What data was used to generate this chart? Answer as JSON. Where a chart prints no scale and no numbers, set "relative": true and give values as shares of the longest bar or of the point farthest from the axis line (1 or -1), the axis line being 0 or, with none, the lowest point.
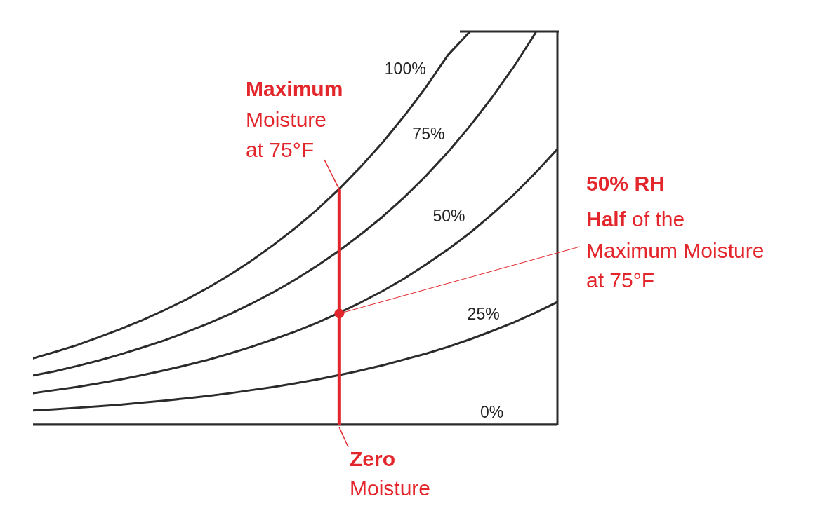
{
  "chart_data": {
    "type": "line",
    "relative": true,
    "tick_labels": false,
    "categories": [
      null,
      null,
      null,
      null,
      null,
      null,
      null,
      null,
      null,
      null,
      null,
      null,
      null,
      null,
      null,
      null,
      null,
      null,
      null,
      null,
      null,
      null,
      null,
      null,
      null
    ],
    "series": [
      {
        "name": "100%",
        "color": "#2b2b2b",
        "values": [
          0.169,
          0.185,
          0.202,
          0.222,
          0.243,
          0.266,
          0.291,
          0.318,
          0.348,
          0.381,
          0.417,
          0.457,
          0.5,
          0.547,
          0.599,
          0.656,
          0.718,
          0.786,
          0.86,
          0.941,
          1,
          null,
          null,
          null,
          null
        ]
      },
      {
        "name": "75%",
        "color": "#2b2b2b",
        "values": [
          0.125,
          0.136,
          0.149,
          0.163,
          0.179,
          0.196,
          0.214,
          0.235,
          0.257,
          0.281,
          0.308,
          0.337,
          0.369,
          0.404,
          0.442,
          0.484,
          0.529,
          0.579,
          0.634,
          0.694,
          0.76,
          0.832,
          0.91,
          0.997,
          null
        ]
      },
      {
        "name": "50%",
        "color": "#2b2b2b",
        "values": [
          0.08,
          0.088,
          0.096,
          0.105,
          0.115,
          0.126,
          0.138,
          0.151,
          0.165,
          0.181,
          0.198,
          0.217,
          0.237,
          0.259,
          0.284,
          0.311,
          0.34,
          0.372,
          0.408,
          0.446,
          0.488,
          0.535,
          0.585,
          0.641,
          0.701
        ]
      },
      {
        "name": "25%",
        "color": "#2b2b2b",
        "values": [
          0.036,
          0.039,
          0.043,
          0.047,
          0.051,
          0.056,
          0.061,
          0.067,
          0.073,
          0.08,
          0.088,
          0.096,
          0.105,
          0.115,
          0.126,
          0.138,
          0.151,
          0.166,
          0.181,
          0.198,
          0.217,
          0.238,
          0.26,
          0.285,
          0.312
        ]
      },
      {
        "name": "0%",
        "color": "#2b2b2b",
        "values": [
          0,
          0,
          0,
          0,
          0,
          0,
          0,
          0,
          0,
          0,
          0,
          0,
          0,
          0,
          0,
          0,
          0,
          0,
          0,
          0,
          0,
          0,
          0,
          0,
          0
        ]
      }
    ],
    "annotations": [
      "Maximum",
      "Moisture",
      "at 75°F",
      "Zero",
      "Moisture",
      "50% RH",
      "Half",
      "of the",
      "Maximum Moisture",
      "at 75°F"
    ]
  }
}
